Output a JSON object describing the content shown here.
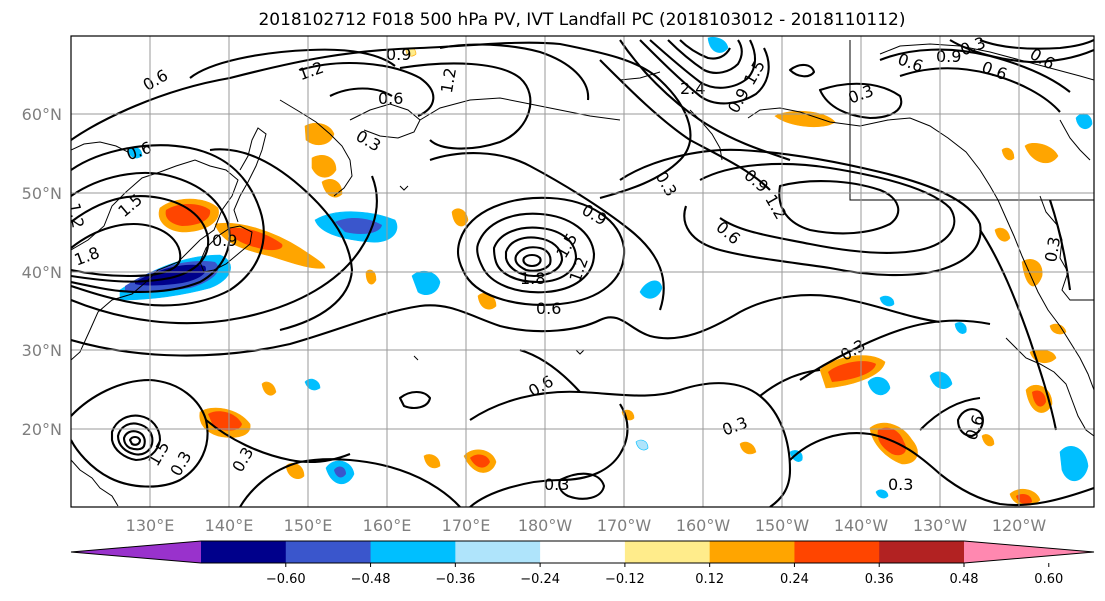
{
  "title": "2018102712 F018 500 hPa PV, IVT Landfall PC (2018103012 - 2018110112)",
  "map": {
    "lat_labels": [
      "60°N",
      "50°N",
      "40°N",
      "30°N",
      "20°N"
    ],
    "lon_labels": [
      "130°E",
      "140°E",
      "150°E",
      "160°E",
      "170°E",
      "180°W",
      "170°W",
      "160°W",
      "150°W",
      "140°W",
      "130°W",
      "120°W"
    ],
    "grid": true
  },
  "colorbar": {
    "ticks": [
      "−0.60",
      "−0.48",
      "−0.36",
      "−0.24",
      "−0.12",
      "0.12",
      "0.24",
      "0.36",
      "0.48",
      "0.60"
    ],
    "colors": [
      "#9932cc",
      "#00008b",
      "#3a56cc",
      "#00bfff",
      "#afe4fb",
      "#ffffff",
      "#ffec8b",
      "#ffa500",
      "#ff4500",
      "#b22222",
      "#ff88b0"
    ],
    "extend": "both"
  },
  "contour_labels": [
    "0.6",
    "1.2",
    "0.9",
    "1.2",
    "0.6",
    "0.3",
    "0.6",
    "1.5",
    "1.2",
    "0.9",
    "1.8",
    "2.4",
    "1.5",
    "0.9",
    "0.3",
    "0.9",
    "1.2",
    "0.6",
    "0.3",
    "0.6",
    "0.9",
    "0.3",
    "0.6",
    "0.6",
    "0.3",
    "0.9",
    "1.5",
    "1.2",
    "1.8",
    "0.6",
    "0.6",
    "0.3",
    "0.3",
    "0.3",
    "1.5",
    "0.3",
    "0.3",
    "0.3",
    "0.6"
  ]
}
